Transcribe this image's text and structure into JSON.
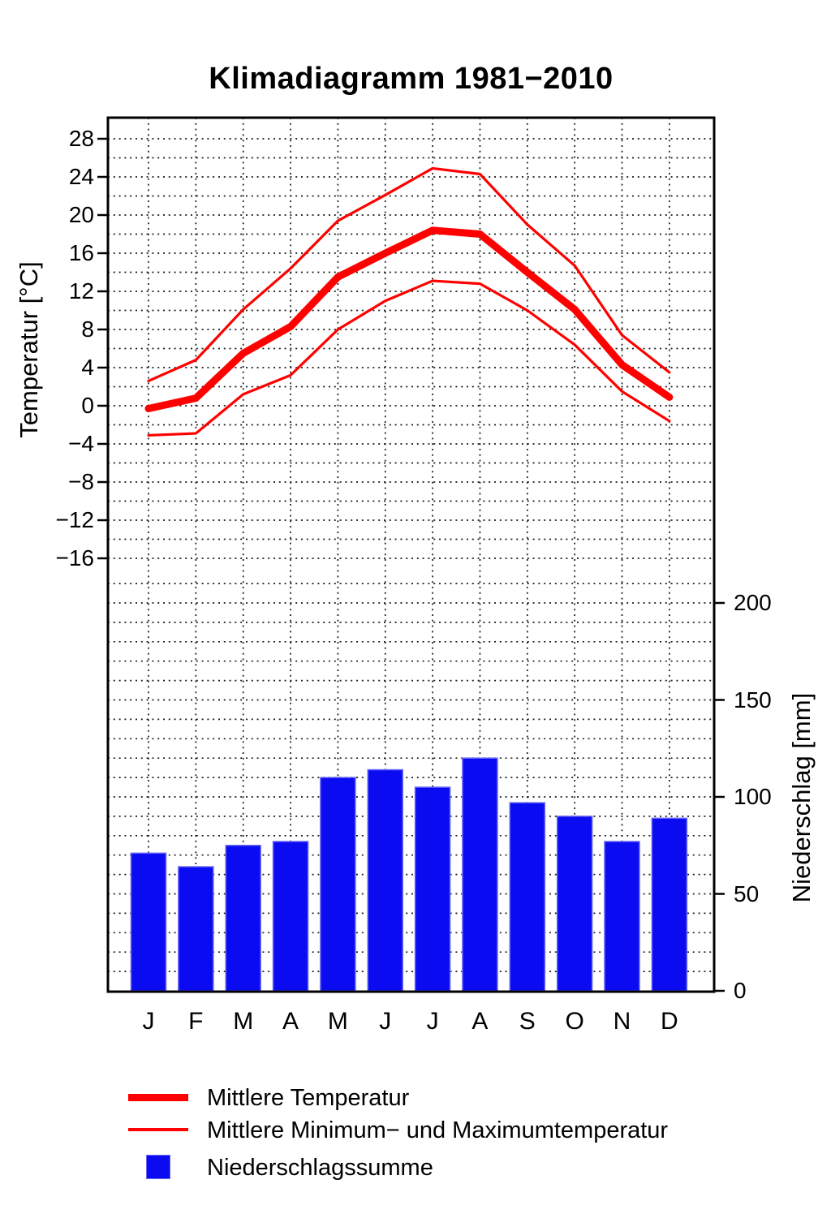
{
  "title": "Klimadiagramm 1981−2010",
  "axes": {
    "left": {
      "label": "Temperatur [°C]",
      "ticks": [
        28,
        24,
        20,
        16,
        12,
        8,
        4,
        0,
        -4,
        -8,
        -12,
        -16
      ]
    },
    "right": {
      "label": "Niederschlag [mm]",
      "ticks": [
        0,
        50,
        100,
        150,
        200
      ]
    },
    "bottom": {
      "month_labels": [
        "J",
        "F",
        "M",
        "A",
        "M",
        "J",
        "J",
        "A",
        "S",
        "O",
        "N",
        "D"
      ]
    }
  },
  "legend": {
    "mean_label": "Mittlere Temperatur",
    "minmax_label": "Mittlere Minimum− und Maximumtemperatur",
    "precip_label": "Niederschlagssumme"
  },
  "colors": {
    "temperature_line": "#ff0000",
    "precipitation_bar": "#0b0bf2",
    "precipitation_bar_edge": "#6666f6",
    "grid": "#1a1a1a",
    "frame": "#000000"
  },
  "chart_data": {
    "type": "bar",
    "subtype": "climate diagram (precipitation bars + temperature lines)",
    "title": "Klimadiagramm 1981−2010",
    "categories": [
      "J",
      "F",
      "M",
      "A",
      "M",
      "J",
      "J",
      "A",
      "S",
      "O",
      "N",
      "D"
    ],
    "series": [
      {
        "name": "Mittlere Temperatur",
        "type": "line",
        "style": "thick red",
        "unit": "°C",
        "values": [
          -0.3,
          0.8,
          5.5,
          8.3,
          13.5,
          16.0,
          18.4,
          18.0,
          14.0,
          10.1,
          4.3,
          0.9
        ]
      },
      {
        "name": "Mittlere Maximumtemperatur",
        "type": "line",
        "style": "thin red",
        "unit": "°C",
        "values": [
          2.6,
          4.8,
          10.1,
          14.4,
          19.4,
          22.1,
          24.9,
          24.3,
          19.0,
          14.7,
          7.4,
          3.5
        ]
      },
      {
        "name": "Mittlere Minimumtemperatur",
        "type": "line",
        "style": "thin red",
        "unit": "°C",
        "values": [
          -3.1,
          -2.9,
          1.2,
          3.2,
          8.0,
          11.0,
          13.1,
          12.8,
          10.0,
          6.4,
          1.5,
          -1.6
        ]
      },
      {
        "name": "Niederschlagssumme",
        "type": "bar",
        "style": "blue",
        "unit": "mm",
        "values": [
          71,
          64,
          75,
          77,
          110,
          114,
          105,
          120,
          97,
          90,
          77,
          89
        ]
      }
    ],
    "left_axis": {
      "label": "Temperatur [°C]",
      "tick_min": -16,
      "tick_max": 28,
      "tick_step": 4,
      "minor_grid_step": 2
    },
    "right_axis": {
      "label": "Niederschlag [mm]",
      "tick_min": 0,
      "tick_max": 200,
      "tick_step": 50,
      "minor_grid_step": 10
    },
    "grid": "dotted black, horizontal every 2 °C / 10 mm, vertical at each month",
    "legend_position": "below chart, left-aligned"
  }
}
